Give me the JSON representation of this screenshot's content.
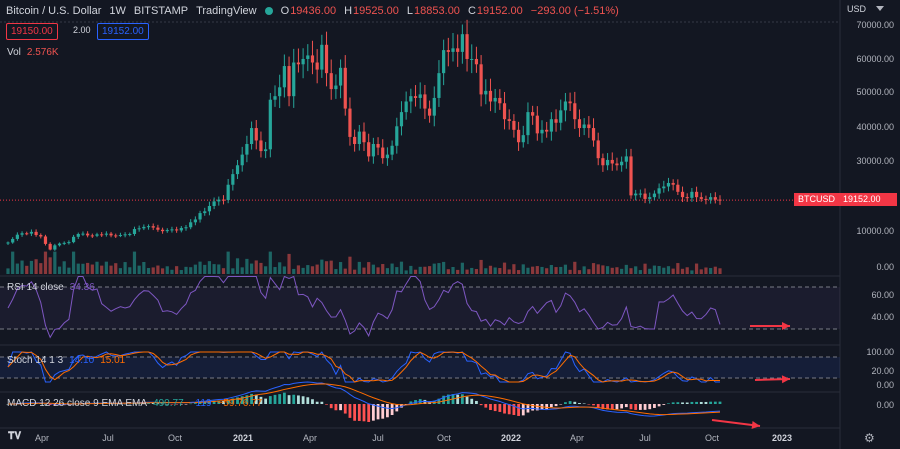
{
  "header": {
    "symbol": "Bitcoin / U.S. Dollar",
    "interval": "1W",
    "exchange": "BITSTAMP",
    "source": "TradingView",
    "o_label": "O",
    "o_value": "19436.00",
    "h_label": "H",
    "h_value": "19525.00",
    "l_label": "L",
    "l_value": "18853.00",
    "c_label": "C",
    "c_value": "19152.00",
    "change": "−293.00 (−1.51%)"
  },
  "quotes": {
    "bid": "19150.00",
    "spread": "2.00",
    "ask": "19152.00"
  },
  "volume": {
    "label": "Vol",
    "value": "2.576K"
  },
  "currency": "USD",
  "price_axis": [
    "70000.00",
    "60000.00",
    "50000.00",
    "40000.00",
    "30000.00",
    "20000.00",
    "10000.00",
    "0.00"
  ],
  "price_tag": {
    "symbol": "BTCUSD",
    "value": "19152.00"
  },
  "rsi": {
    "label": "RSI 14 close",
    "value": "34.36",
    "axis": [
      "60.00",
      "40.00"
    ]
  },
  "stoch": {
    "label": "Stoch 14 1 3",
    "k": "14.10",
    "d": "15.01",
    "axis": [
      "100.00",
      "20.00",
      "0.00"
    ]
  },
  "macd": {
    "label": "MACD 12 26 close 9 EMA EMA",
    "v1": "490.77",
    "v2": "−119",
    "v3": "−59.76.77",
    "axis": [
      "0.00"
    ]
  },
  "time_axis": [
    {
      "label": "Apr",
      "bold": false
    },
    {
      "label": "Jul",
      "bold": false
    },
    {
      "label": "Oct",
      "bold": false
    },
    {
      "label": "2021",
      "bold": true
    },
    {
      "label": "Apr",
      "bold": false
    },
    {
      "label": "Jul",
      "bold": false
    },
    {
      "label": "Oct",
      "bold": false
    },
    {
      "label": "2022",
      "bold": true
    },
    {
      "label": "Apr",
      "bold": false
    },
    {
      "label": "Jul",
      "bold": false
    },
    {
      "label": "Oct",
      "bold": false
    },
    {
      "label": "2023",
      "bold": true
    }
  ],
  "colors": {
    "up": "#26a69a",
    "down": "#ef5350",
    "rsi_line": "#7e57c2",
    "stoch_k": "#2962ff",
    "stoch_d": "#ff6d00",
    "arrow": "#f23645",
    "background": "#131722"
  },
  "chart_data": {
    "type": "candlestick",
    "symbol": "BTCUSD",
    "interval": "1W",
    "x_start": "2020-01",
    "x_end": "2022-10",
    "weekly_close_approx": [
      7200,
      8200,
      9400,
      9800,
      9700,
      10200,
      9300,
      8900,
      6800,
      5200,
      6400,
      6900,
      7100,
      7300,
      8800,
      9600,
      9700,
      9200,
      9100,
      9500,
      9400,
      9700,
      9200,
      9100,
      9300,
      9500,
      9600,
      11000,
      11200,
      11600,
      11800,
      11400,
      10800,
      10400,
      10700,
      10900,
      10600,
      11300,
      11500,
      12900,
      13700,
      15500,
      16000,
      17500,
      18800,
      19300,
      19200,
      23500,
      26500,
      29000,
      32000,
      35000,
      39500,
      36000,
      33000,
      33500,
      47500,
      48500,
      51000,
      57000,
      48500,
      58000,
      57500,
      59000,
      60000,
      58000,
      56000,
      63000,
      55000,
      50500,
      51500,
      56500,
      45000,
      37000,
      35000,
      38500,
      35500,
      31500,
      35000,
      34000,
      31000,
      32000,
      34500,
      40000,
      44000,
      47000,
      48500,
      48000,
      49000,
      45000,
      43000,
      48000,
      55000,
      61500,
      61000,
      62000,
      61000,
      66000,
      59000,
      59000,
      57500,
      49000,
      50000,
      47000,
      48000,
      46500,
      42000,
      41500,
      39000,
      35500,
      37500,
      44000,
      43000,
      38000,
      39000,
      38500,
      42000,
      41000,
      44500,
      47000,
      46500,
      42000,
      39500,
      40500,
      39500,
      36000,
      31000,
      29000,
      30500,
      29500,
      29000,
      30000,
      31500,
      20500,
      21000,
      21000,
      19500,
      20000,
      21000,
      22500,
      23000,
      24000,
      23500,
      21500,
      20000,
      19800,
      21500,
      20000,
      19500,
      19300,
      20000,
      19300,
      19152
    ],
    "ylim": [
      0,
      70000
    ],
    "rsi_last": 34.36,
    "stoch_k_last": 14.1,
    "stoch_d_last": 15.01
  }
}
